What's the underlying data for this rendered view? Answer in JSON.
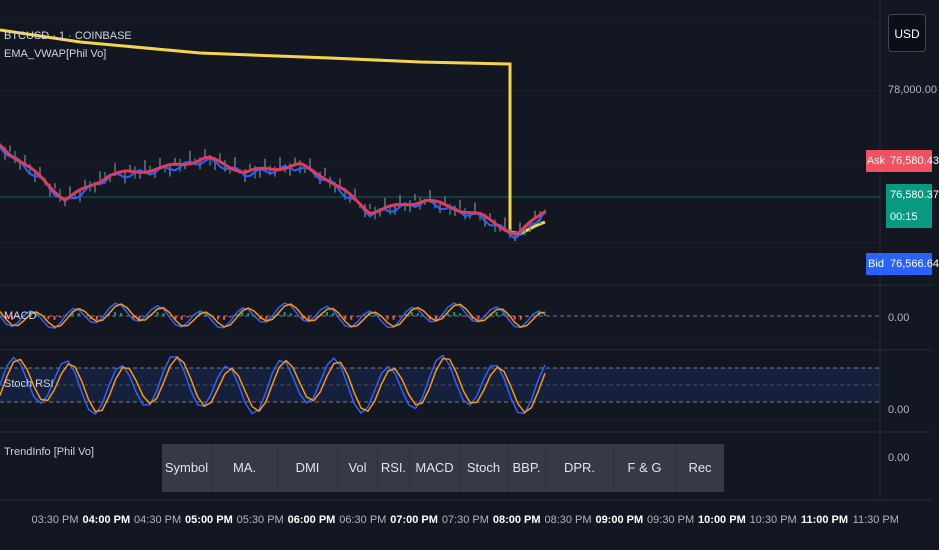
{
  "chart": {
    "symbol": "BTCUSD · 1 · COINBASE",
    "indicator": "EMA_VWAP[Phil Vo]",
    "currency": "USD",
    "price_axis": {
      "label_78000": "78,000.00"
    },
    "ask": {
      "label": "Ask",
      "value": "76,580.43"
    },
    "last": {
      "value": "76,580.37",
      "countdown": "00:15"
    },
    "bid": {
      "label": "Bid",
      "value": "76,566.64"
    },
    "macd": {
      "label": "MACD",
      "axis": "0.00"
    },
    "stoch": {
      "label": "Stoch RSI",
      "axis": "0.00"
    },
    "trendinfo": {
      "label": "TrendInfo [Phil Vo]",
      "axis": "0.00"
    }
  },
  "table_columns": [
    "Symbol",
    "MA.",
    "DMI",
    "Vol",
    "RSI.",
    "MACD",
    "Stoch",
    "BBP.",
    "DPR.",
    "F & G",
    "Rec"
  ],
  "time_axis": [
    {
      "t": "03:30 PM",
      "bold": false
    },
    {
      "t": "04:00 PM",
      "bold": true
    },
    {
      "t": "04:30 PM",
      "bold": false
    },
    {
      "t": "05:00 PM",
      "bold": true
    },
    {
      "t": "05:30 PM",
      "bold": false
    },
    {
      "t": "06:00 PM",
      "bold": true
    },
    {
      "t": "06:30 PM",
      "bold": false
    },
    {
      "t": "07:00 PM",
      "bold": true
    },
    {
      "t": "07:30 PM",
      "bold": false
    },
    {
      "t": "08:00 PM",
      "bold": true
    },
    {
      "t": "08:30 PM",
      "bold": false
    },
    {
      "t": "09:00 PM",
      "bold": true
    },
    {
      "t": "09:30 PM",
      "bold": false
    },
    {
      "t": "10:00 PM",
      "bold": true
    },
    {
      "t": "10:30 PM",
      "bold": false
    },
    {
      "t": "11:00 PM",
      "bold": true
    },
    {
      "t": "11:30 PM",
      "bold": false
    }
  ],
  "colors": {
    "background": "#131722",
    "vwap": "#f7d44c",
    "ema_fast": "#e03a5c",
    "ema_slow": "#2962ff",
    "macd_line": "#2962ff",
    "signal_line": "#ff9800",
    "ask": "#f0525f",
    "last": "#089981",
    "bid": "#2962ff"
  }
}
